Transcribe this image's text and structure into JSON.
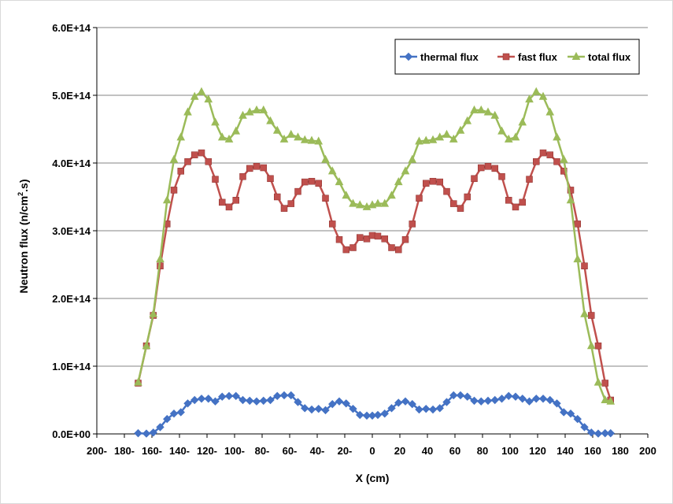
{
  "chart_data": {
    "type": "line",
    "xlabel": "X (cm)",
    "ylabel_main": "Neutron flux (n/cm",
    "ylabel_sup": "2",
    "ylabel_tail": ".s)",
    "xlim": [
      -200,
      200
    ],
    "ylim": [
      0,
      600000000000000.0
    ],
    "x_ticks": [
      -200,
      -180,
      -160,
      -140,
      -120,
      -100,
      -80,
      -60,
      -40,
      -20,
      0,
      20,
      40,
      60,
      80,
      100,
      120,
      140,
      160,
      180,
      200
    ],
    "x_tick_labels": [
      "200-",
      "180-",
      "160-",
      "140-",
      "120-",
      "100-",
      "80-",
      "60-",
      "40-",
      "20-",
      "0",
      "20",
      "40",
      "60",
      "80",
      "100",
      "120",
      "140",
      "160",
      "180",
      "200"
    ],
    "y_ticks": [
      0,
      100000000000000.0,
      200000000000000.0,
      300000000000000.0,
      400000000000000.0,
      500000000000000.0,
      600000000000000.0
    ],
    "y_tick_labels": [
      "0.0E+00",
      "1.0E+14",
      "2.0E+14",
      "3.0E+14",
      "4.0E+14",
      "5.0E+14",
      "6.0E+14"
    ],
    "grid": "horizontal major",
    "legend_position": "top-right",
    "x": [
      -170,
      -164,
      -159,
      -154,
      -149,
      -144,
      -139,
      -134,
      -129,
      -124,
      -119,
      -114,
      -109,
      -104,
      -99,
      -94,
      -89,
      -84,
      -79,
      -74,
      -69,
      -64,
      -59,
      -54,
      -49,
      -44,
      -39,
      -34,
      -29,
      -24,
      -19,
      -14,
      -9,
      -4,
      0,
      4,
      9,
      14,
      19,
      24,
      29,
      34,
      39,
      44,
      49,
      54,
      59,
      64,
      69,
      74,
      79,
      84,
      89,
      94,
      99,
      104,
      109,
      114,
      119,
      124,
      129,
      134,
      139,
      144,
      149,
      154,
      159,
      164,
      169,
      173
    ],
    "series": [
      {
        "name": "thermal flux",
        "color": "#4472c4",
        "marker": "diamond",
        "values": [
          1000000000000.0,
          500000000000.0,
          2000000000000.0,
          10000000000000.0,
          22000000000000.0,
          30000000000000.0,
          32000000000000.0,
          45000000000000.0,
          50000000000000.0,
          52000000000000.0,
          52000000000000.0,
          48000000000000.0,
          55000000000000.0,
          56000000000000.0,
          56000000000000.0,
          50000000000000.0,
          49000000000000.0,
          48000000000000.0,
          49000000000000.0,
          50000000000000.0,
          56000000000000.0,
          57000000000000.0,
          57000000000000.0,
          47000000000000.0,
          38000000000000.0,
          36000000000000.0,
          37000000000000.0,
          35000000000000.0,
          44000000000000.0,
          48000000000000.0,
          45000000000000.0,
          37000000000000.0,
          28000000000000.0,
          27000000000000.0,
          27000000000000.0,
          28000000000000.0,
          30000000000000.0,
          38000000000000.0,
          46000000000000.0,
          48000000000000.0,
          44000000000000.0,
          36000000000000.0,
          37000000000000.0,
          36000000000000.0,
          38000000000000.0,
          47000000000000.0,
          57000000000000.0,
          57000000000000.0,
          55000000000000.0,
          49000000000000.0,
          48000000000000.0,
          49000000000000.0,
          50000000000000.0,
          52000000000000.0,
          56000000000000.0,
          55000000000000.0,
          52000000000000.0,
          48000000000000.0,
          52000000000000.0,
          52000000000000.0,
          50000000000000.0,
          45000000000000.0,
          32000000000000.0,
          30000000000000.0,
          22000000000000.0,
          10000000000000.0,
          2000000000000.0,
          500000000000.0,
          1000000000000.0,
          1000000000000.0
        ]
      },
      {
        "name": "fast flux",
        "color": "#c0504d",
        "marker": "square",
        "values": [
          75000000000000.0,
          130000000000000.0,
          175000000000000.0,
          248000000000000.0,
          310000000000000.0,
          360000000000000.0,
          388000000000000.0,
          402000000000000.0,
          412000000000000.0,
          415000000000000.0,
          402000000000000.0,
          376000000000000.0,
          342000000000000.0,
          335000000000000.0,
          345000000000000.0,
          380000000000000.0,
          392000000000000.0,
          395000000000000.0,
          393000000000000.0,
          377000000000000.0,
          350000000000000.0,
          333000000000000.0,
          340000000000000.0,
          358000000000000.0,
          372000000000000.0,
          373000000000000.0,
          370000000000000.0,
          348000000000000.0,
          310000000000000.0,
          287000000000000.0,
          272000000000000.0,
          275000000000000.0,
          290000000000000.0,
          288000000000000.0,
          293000000000000.0,
          292000000000000.0,
          288000000000000.0,
          275000000000000.0,
          272000000000000.0,
          287000000000000.0,
          310000000000000.0,
          348000000000000.0,
          370000000000000.0,
          373000000000000.0,
          372000000000000.0,
          358000000000000.0,
          340000000000000.0,
          333000000000000.0,
          350000000000000.0,
          377000000000000.0,
          393000000000000.0,
          395000000000000.0,
          392000000000000.0,
          380000000000000.0,
          345000000000000.0,
          335000000000000.0,
          342000000000000.0,
          376000000000000.0,
          402000000000000.0,
          415000000000000.0,
          412000000000000.0,
          402000000000000.0,
          388000000000000.0,
          360000000000000.0,
          310000000000000.0,
          248000000000000.0,
          175000000000000.0,
          130000000000000.0,
          75000000000000.0,
          50000000000000.0
        ]
      },
      {
        "name": "total flux",
        "color": "#9bbb59",
        "marker": "triangle",
        "values": [
          76000000000000.0,
          130000000000000.0,
          177000000000000.0,
          258000000000000.0,
          345000000000000.0,
          405000000000000.0,
          438000000000000.0,
          475000000000000.0,
          498000000000000.0,
          505000000000000.0,
          494000000000000.0,
          460000000000000.0,
          438000000000000.0,
          435000000000000.0,
          447000000000000.0,
          470000000000000.0,
          475000000000000.0,
          478000000000000.0,
          478000000000000.0,
          462000000000000.0,
          448000000000000.0,
          435000000000000.0,
          442000000000000.0,
          438000000000000.0,
          434000000000000.0,
          433000000000000.0,
          432000000000000.0,
          405000000000000.0,
          388000000000000.0,
          372000000000000.0,
          352000000000000.0,
          340000000000000.0,
          338000000000000.0,
          335000000000000.0,
          338000000000000.0,
          340000000000000.0,
          340000000000000.0,
          352000000000000.0,
          372000000000000.0,
          388000000000000.0,
          405000000000000.0,
          432000000000000.0,
          433000000000000.0,
          434000000000000.0,
          438000000000000.0,
          442000000000000.0,
          435000000000000.0,
          448000000000000.0,
          462000000000000.0,
          478000000000000.0,
          478000000000000.0,
          475000000000000.0,
          470000000000000.0,
          447000000000000.0,
          435000000000000.0,
          438000000000000.0,
          460000000000000.0,
          494000000000000.0,
          505000000000000.0,
          498000000000000.0,
          475000000000000.0,
          438000000000000.0,
          405000000000000.0,
          345000000000000.0,
          258000000000000.0,
          177000000000000.0,
          130000000000000.0,
          76000000000000.0,
          50000000000000.0,
          48000000000000.0
        ]
      }
    ]
  }
}
